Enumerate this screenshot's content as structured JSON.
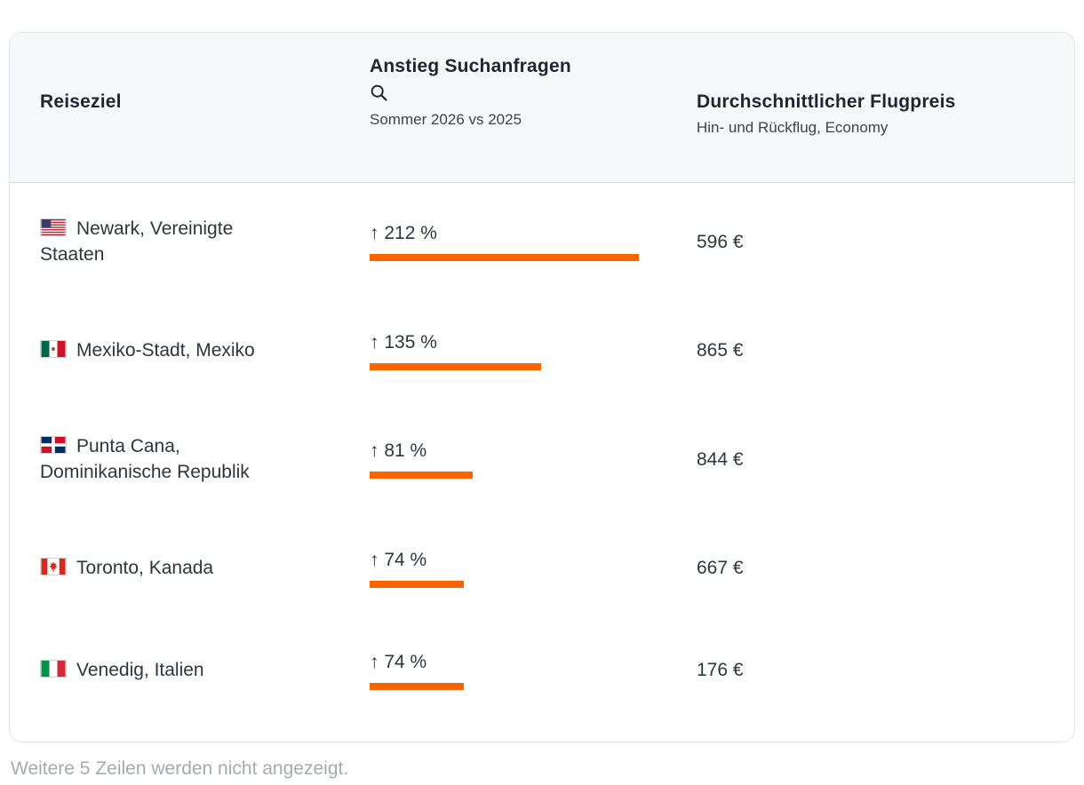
{
  "header": {
    "columns": {
      "destination": {
        "label": "Reiseziel"
      },
      "search_increase": {
        "label": "Anstieg Suchanfragen",
        "icon": "search-icon",
        "subtitle": "Sommer 2026 vs 2025"
      },
      "price": {
        "label": "Durchschnittlicher Flugpreis",
        "subtitle": "Hin- und Rückflug, Economy"
      }
    }
  },
  "rows": [
    {
      "flag": "us-flag-icon",
      "destination": "Newark, Vereinigte Staaten",
      "increase_label": "↑ 212 %",
      "increase_value": 212,
      "price": "596 €"
    },
    {
      "flag": "mexico-flag-icon",
      "destination": "Mexiko-Stadt, Mexiko",
      "increase_label": "↑ 135 %",
      "increase_value": 135,
      "price": "865 €"
    },
    {
      "flag": "dominican-republic-flag-icon",
      "destination": "Punta Cana, Dominikanische Republik",
      "increase_label": "↑ 81 %",
      "increase_value": 81,
      "price": "844 €"
    },
    {
      "flag": "canada-flag-icon",
      "destination": "Toronto, Kanada",
      "increase_label": "↑ 74 %",
      "increase_value": 74,
      "price": "667 €"
    },
    {
      "flag": "italy-flag-icon",
      "destination": "Venedig, Italien",
      "increase_label": "↑ 74 %",
      "increase_value": 74,
      "price": "176 €"
    }
  ],
  "footer_note": "Weitere 5 Zeilen werden nicht angezeigt.",
  "colors": {
    "bar": "#fa6400",
    "header_background": "#f7f8fa"
  },
  "chart_data": {
    "type": "table",
    "title": "",
    "columns": [
      "Reiseziel",
      "Anstieg Suchanfragen — Sommer 2026 vs 2025",
      "Durchschnittlicher Flugpreis — Hin- und Rückflug, Economy"
    ],
    "rows": [
      [
        "Newark, Vereinigte Staaten",
        "↑ 212 %",
        "596 €"
      ],
      [
        "Mexiko-Stadt, Mexiko",
        "↑ 135 %",
        "865 €"
      ],
      [
        "Punta Cana, Dominikanische Republik",
        "↑ 81 %",
        "844 €"
      ],
      [
        "Toronto, Kanada",
        "↑ 74 %",
        "667 €"
      ],
      [
        "Venedig, Italien",
        "↑ 74 %",
        "176 €"
      ]
    ],
    "categories": [
      "Newark, Vereinigte Staaten",
      "Mexiko-Stadt, Mexiko",
      "Punta Cana, Dominikanische Republik",
      "Toronto, Kanada",
      "Venedig, Italien"
    ],
    "series": [
      {
        "name": "Anstieg Suchanfragen (%)",
        "values": [
          212,
          135,
          81,
          74,
          74
        ]
      },
      {
        "name": "Durchschnittlicher Flugpreis (€)",
        "values": [
          596,
          865,
          844,
          667,
          176
        ]
      }
    ],
    "bar_color": "#fa6400",
    "legend": "none",
    "grid": false
  }
}
